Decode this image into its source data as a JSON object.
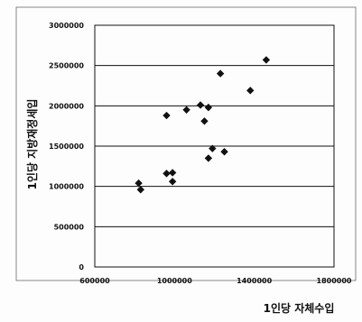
{
  "chart_data": {
    "type": "scatter",
    "title": "",
    "xlabel": "1인당 자체수입",
    "ylabel": "1인당 지방재정세입",
    "xlim": [
      600000,
      1800000
    ],
    "ylim": [
      0,
      3000000
    ],
    "x_ticks": [
      600000,
      1000000,
      1400000,
      1800000
    ],
    "x_tick_labels": [
      "600000",
      "1000000",
      "1400000",
      "1800000"
    ],
    "y_ticks": [
      0,
      500000,
      1000000,
      1500000,
      2000000,
      2500000,
      3000000
    ],
    "y_tick_labels": [
      "0",
      "500000",
      "1000000",
      "1500000",
      "2000000",
      "2500000",
      "3000000"
    ],
    "grid": "horizontal",
    "marker": "diamond",
    "marker_color": "#111111",
    "points": [
      {
        "x": 820000,
        "y": 1040000
      },
      {
        "x": 830000,
        "y": 960000
      },
      {
        "x": 960000,
        "y": 1880000
      },
      {
        "x": 960000,
        "y": 1160000
      },
      {
        "x": 990000,
        "y": 1170000
      },
      {
        "x": 990000,
        "y": 1060000
      },
      {
        "x": 1060000,
        "y": 1950000
      },
      {
        "x": 1130000,
        "y": 2010000
      },
      {
        "x": 1150000,
        "y": 1810000
      },
      {
        "x": 1170000,
        "y": 1980000
      },
      {
        "x": 1170000,
        "y": 1350000
      },
      {
        "x": 1190000,
        "y": 1470000
      },
      {
        "x": 1230000,
        "y": 2400000
      },
      {
        "x": 1250000,
        "y": 1430000
      },
      {
        "x": 1380000,
        "y": 2190000
      },
      {
        "x": 1460000,
        "y": 2570000
      }
    ]
  }
}
